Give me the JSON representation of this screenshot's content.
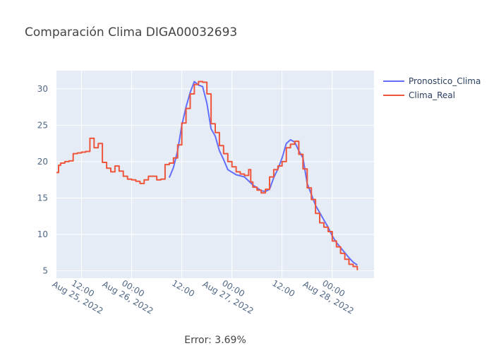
{
  "chart_data": {
    "type": "line",
    "title": "Comparación Clima DIGA00032693",
    "xlabel": "",
    "ylabel": "",
    "x_range": [
      "2022-08-25T06:00",
      "2022-08-28T10:00"
    ],
    "y_range": [
      4,
      32.5
    ],
    "y_ticks": [
      5,
      10,
      15,
      20,
      25,
      30
    ],
    "x_ticks": [
      {
        "t": "2022-08-25T12:00",
        "line1": "12:00",
        "line2": "Aug 25, 2022"
      },
      {
        "t": "2022-08-26T00:00",
        "line1": "00:00",
        "line2": "Aug 26, 2022"
      },
      {
        "t": "2022-08-26T12:00",
        "line1": "12:00",
        "line2": ""
      },
      {
        "t": "2022-08-27T00:00",
        "line1": "00:00",
        "line2": "Aug 27, 2022"
      },
      {
        "t": "2022-08-27T12:00",
        "line1": "12:00",
        "line2": ""
      },
      {
        "t": "2022-08-28T00:00",
        "line1": "00:00",
        "line2": "Aug 28, 2022"
      }
    ],
    "grid": true,
    "legend_position": "top-right",
    "series": [
      {
        "name": "Pronostico_Clima",
        "color": "#636efa",
        "step": false,
        "points": [
          [
            "2022-08-26T09:00",
            17.8
          ],
          [
            "2022-08-26T10:00",
            19.2
          ],
          [
            "2022-08-26T11:00",
            21.5
          ],
          [
            "2022-08-26T12:00",
            25.0
          ],
          [
            "2022-08-26T13:00",
            27.5
          ],
          [
            "2022-08-26T14:00",
            29.5
          ],
          [
            "2022-08-26T15:00",
            31.0
          ],
          [
            "2022-08-26T16:00",
            30.5
          ],
          [
            "2022-08-26T17:00",
            30.3
          ],
          [
            "2022-08-26T18:00",
            28.0
          ],
          [
            "2022-08-26T19:00",
            24.5
          ],
          [
            "2022-08-26T20:00",
            23.5
          ],
          [
            "2022-08-26T21:00",
            21.5
          ],
          [
            "2022-08-26T22:00",
            20.3
          ],
          [
            "2022-08-26T23:00",
            18.9
          ],
          [
            "2022-08-27T01:00",
            18.2
          ],
          [
            "2022-08-27T03:00",
            17.9
          ],
          [
            "2022-08-27T05:00",
            16.8
          ],
          [
            "2022-08-27T07:00",
            16.0
          ],
          [
            "2022-08-27T08:00",
            15.9
          ],
          [
            "2022-08-27T09:00",
            16.2
          ],
          [
            "2022-08-27T10:00",
            17.8
          ],
          [
            "2022-08-27T11:00",
            19.0
          ],
          [
            "2022-08-27T12:00",
            20.5
          ],
          [
            "2022-08-27T13:00",
            22.5
          ],
          [
            "2022-08-27T14:00",
            23.0
          ],
          [
            "2022-08-27T15:00",
            22.7
          ],
          [
            "2022-08-27T16:00",
            21.5
          ],
          [
            "2022-08-27T17:00",
            20.5
          ],
          [
            "2022-08-27T18:00",
            17.0
          ],
          [
            "2022-08-27T19:00",
            15.5
          ],
          [
            "2022-08-27T20:00",
            14.0
          ],
          [
            "2022-08-27T21:00",
            13.0
          ],
          [
            "2022-08-27T22:00",
            12.0
          ],
          [
            "2022-08-27T23:00",
            11.0
          ],
          [
            "2022-08-28T00:00",
            9.8
          ],
          [
            "2022-08-28T01:00",
            8.9
          ],
          [
            "2022-08-28T02:00",
            8.2
          ],
          [
            "2022-08-28T03:00",
            7.5
          ],
          [
            "2022-08-28T04:00",
            6.8
          ],
          [
            "2022-08-28T05:00",
            6.2
          ],
          [
            "2022-08-28T06:00",
            5.8
          ]
        ]
      },
      {
        "name": "Clima_Real",
        "color": "#ef553b",
        "step": true,
        "points": [
          [
            "2022-08-25T06:00",
            18.5
          ],
          [
            "2022-08-25T06:30",
            19.5
          ],
          [
            "2022-08-25T07:00",
            19.8
          ],
          [
            "2022-08-25T08:00",
            20.0
          ],
          [
            "2022-08-25T09:00",
            20.1
          ],
          [
            "2022-08-25T10:00",
            21.1
          ],
          [
            "2022-08-25T11:00",
            21.2
          ],
          [
            "2022-08-25T12:00",
            21.3
          ],
          [
            "2022-08-25T13:00",
            21.4
          ],
          [
            "2022-08-25T14:00",
            23.2
          ],
          [
            "2022-08-25T15:00",
            21.9
          ],
          [
            "2022-08-25T16:00",
            22.5
          ],
          [
            "2022-08-25T17:00",
            19.9
          ],
          [
            "2022-08-25T18:00",
            19.1
          ],
          [
            "2022-08-25T19:00",
            18.6
          ],
          [
            "2022-08-25T20:00",
            19.4
          ],
          [
            "2022-08-25T21:00",
            18.7
          ],
          [
            "2022-08-25T22:00",
            18.0
          ],
          [
            "2022-08-25T23:00",
            17.6
          ],
          [
            "2022-08-26T00:00",
            17.5
          ],
          [
            "2022-08-26T01:00",
            17.3
          ],
          [
            "2022-08-26T02:00",
            17.0
          ],
          [
            "2022-08-26T03:00",
            17.5
          ],
          [
            "2022-08-26T04:00",
            18.0
          ],
          [
            "2022-08-26T05:00",
            18.0
          ],
          [
            "2022-08-26T06:00",
            17.5
          ],
          [
            "2022-08-26T07:00",
            17.6
          ],
          [
            "2022-08-26T08:00",
            19.6
          ],
          [
            "2022-08-26T09:00",
            19.8
          ],
          [
            "2022-08-26T10:00",
            20.5
          ],
          [
            "2022-08-26T11:00",
            22.3
          ],
          [
            "2022-08-26T12:00",
            25.3
          ],
          [
            "2022-08-26T13:00",
            27.3
          ],
          [
            "2022-08-26T14:00",
            29.3
          ],
          [
            "2022-08-26T15:00",
            30.6
          ],
          [
            "2022-08-26T16:00",
            31.0
          ],
          [
            "2022-08-26T17:00",
            30.9
          ],
          [
            "2022-08-26T18:00",
            29.3
          ],
          [
            "2022-08-26T19:00",
            25.2
          ],
          [
            "2022-08-26T20:00",
            24.0
          ],
          [
            "2022-08-26T21:00",
            22.2
          ],
          [
            "2022-08-26T22:00",
            21.1
          ],
          [
            "2022-08-26T23:00",
            20.0
          ],
          [
            "2022-08-27T00:00",
            19.3
          ],
          [
            "2022-08-27T01:00",
            18.6
          ],
          [
            "2022-08-27T02:00",
            18.3
          ],
          [
            "2022-08-27T03:00",
            18.1
          ],
          [
            "2022-08-27T04:00",
            18.9
          ],
          [
            "2022-08-27T04:30",
            17.2
          ],
          [
            "2022-08-27T05:00",
            16.5
          ],
          [
            "2022-08-27T06:00",
            16.1
          ],
          [
            "2022-08-27T07:00",
            15.7
          ],
          [
            "2022-08-27T08:00",
            16.2
          ],
          [
            "2022-08-27T09:00",
            17.9
          ],
          [
            "2022-08-27T10:00",
            18.9
          ],
          [
            "2022-08-27T11:00",
            19.4
          ],
          [
            "2022-08-27T12:00",
            20.0
          ],
          [
            "2022-08-27T13:00",
            21.9
          ],
          [
            "2022-08-27T14:00",
            22.4
          ],
          [
            "2022-08-27T15:00",
            22.8
          ],
          [
            "2022-08-27T16:00",
            21.0
          ],
          [
            "2022-08-27T17:00",
            19.0
          ],
          [
            "2022-08-27T18:00",
            16.4
          ],
          [
            "2022-08-27T19:00",
            14.8
          ],
          [
            "2022-08-27T20:00",
            12.9
          ],
          [
            "2022-08-27T21:00",
            11.6
          ],
          [
            "2022-08-27T22:00",
            11.0
          ],
          [
            "2022-08-27T23:00",
            10.4
          ],
          [
            "2022-08-28T00:00",
            9.1
          ],
          [
            "2022-08-28T01:00",
            8.3
          ],
          [
            "2022-08-28T02:00",
            7.4
          ],
          [
            "2022-08-28T03:00",
            6.6
          ],
          [
            "2022-08-28T04:00",
            5.9
          ],
          [
            "2022-08-28T05:00",
            5.6
          ],
          [
            "2022-08-28T06:00",
            5.1
          ]
        ]
      }
    ]
  },
  "footer": {
    "error_text": "Error: 3.69%"
  },
  "colors": {
    "plot_bg": "#e5ecf6",
    "grid": "#ffffff"
  }
}
